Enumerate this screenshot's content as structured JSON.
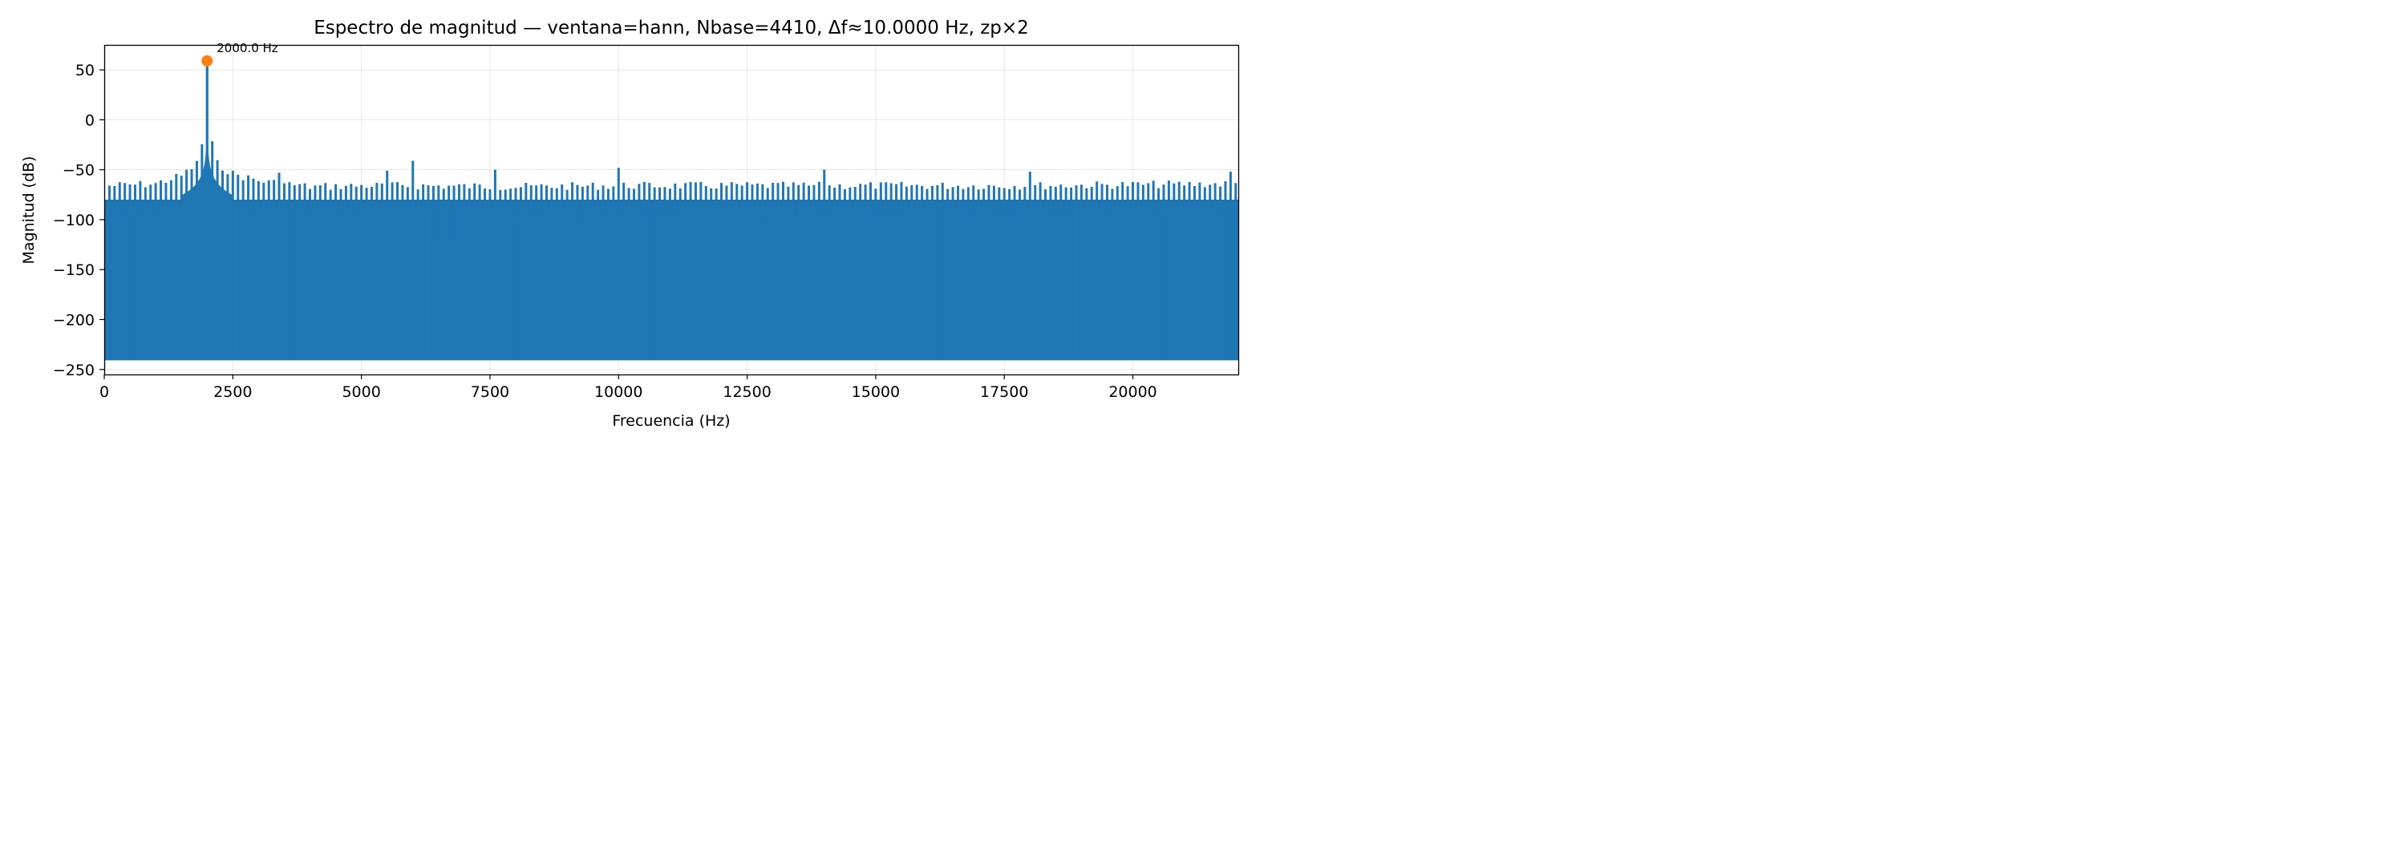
{
  "chart_data": {
    "type": "line",
    "title": "Espectro de magnitud — ventana=hann, Nbase=4410, Δf≈10.0000 Hz, zp×2",
    "xlabel": "Frecuencia (Hz)",
    "ylabel": "Magnitud (dB)",
    "xlim": [
      0,
      22050
    ],
    "ylim": [
      -255,
      75
    ],
    "x_ticks": [
      0,
      2500,
      5000,
      7500,
      10000,
      12500,
      15000,
      17500,
      20000
    ],
    "x_tick_labels": [
      "0",
      "2500",
      "5000",
      "7500",
      "10000",
      "12500",
      "15000",
      "17500",
      "20000"
    ],
    "y_ticks": [
      50,
      0,
      -50,
      -100,
      -150,
      -200,
      -250
    ],
    "y_tick_labels": [
      "50",
      "0",
      "−50",
      "−100",
      "−150",
      "−200",
      "−250"
    ],
    "grid": true,
    "series": [
      {
        "color": "#1f77b4",
        "floor_db": -240,
        "main_peak": {
          "x": 2000,
          "y": 59
        },
        "noise_band": {
          "low": -100,
          "high": -80
        },
        "peak_envelope": [
          {
            "x": 100,
            "y": -62
          },
          {
            "x": 1000,
            "y": -60
          },
          {
            "x": 1500,
            "y": -52
          },
          {
            "x": 1800,
            "y": -40
          },
          {
            "x": 1950,
            "y": -10
          },
          {
            "x": 2000,
            "y": 59
          },
          {
            "x": 2050,
            "y": -10
          },
          {
            "x": 2200,
            "y": -40
          },
          {
            "x": 2500,
            "y": -50
          },
          {
            "x": 3000,
            "y": -57
          },
          {
            "x": 4000,
            "y": -63
          },
          {
            "x": 5000,
            "y": -62
          },
          {
            "x": 6000,
            "y": -62
          },
          {
            "x": 8000,
            "y": -63
          },
          {
            "x": 10000,
            "y": -62
          },
          {
            "x": 14000,
            "y": -62
          },
          {
            "x": 18000,
            "y": -62
          },
          {
            "x": 22000,
            "y": -60
          }
        ],
        "spurs": [
          {
            "x": 6000,
            "y": -41
          },
          {
            "x": 10000,
            "y": -48
          },
          {
            "x": 5500,
            "y": -51
          },
          {
            "x": 7600,
            "y": -50
          },
          {
            "x": 14000,
            "y": -50
          },
          {
            "x": 3400,
            "y": -53
          },
          {
            "x": 18000,
            "y": -52
          },
          {
            "x": 21900,
            "y": -52
          }
        ],
        "dips": [
          {
            "x": 6400,
            "y": -122
          },
          {
            "x": 6800,
            "y": -122
          },
          {
            "x": 19200,
            "y": -130
          }
        ]
      }
    ],
    "markers": [
      {
        "x": 2000,
        "y": 59,
        "color": "#ff7f0e",
        "label": "2000.0 Hz"
      }
    ]
  }
}
